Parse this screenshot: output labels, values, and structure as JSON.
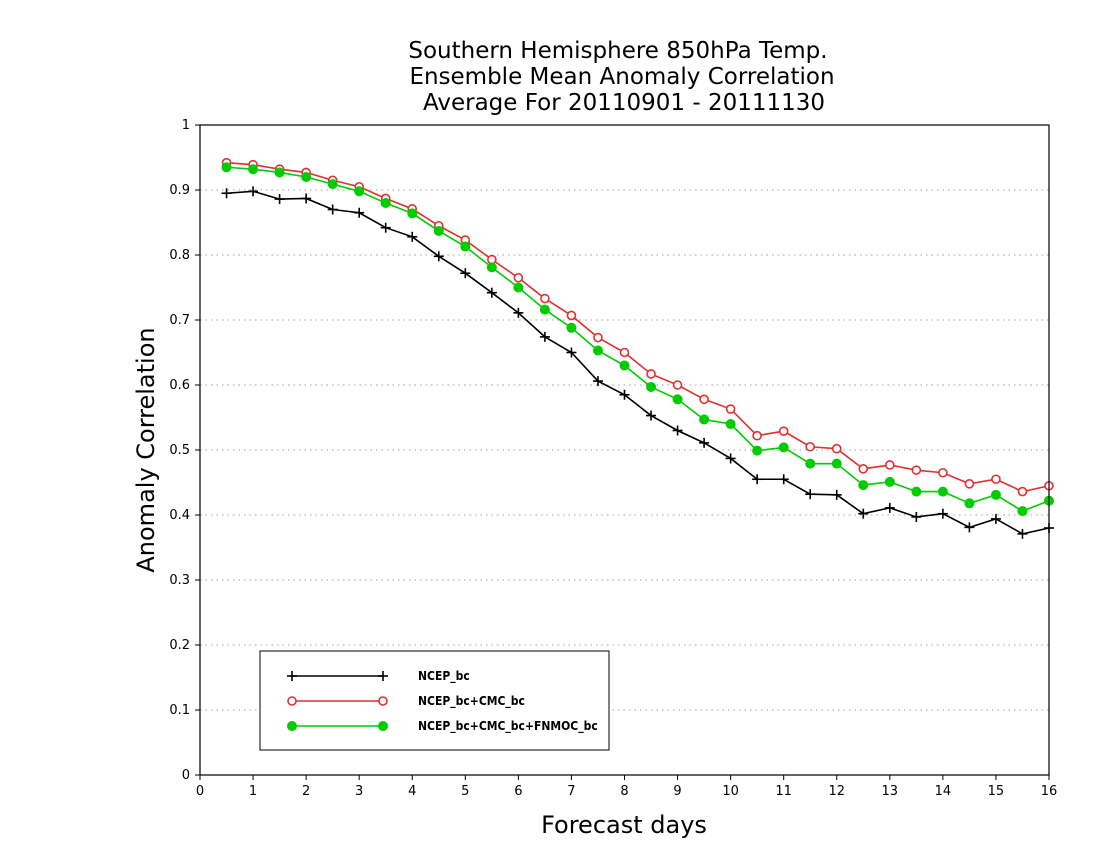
{
  "chart_data": {
    "type": "line",
    "title_lines": [
      "Southern Hemisphere 850hPa Temp.",
      "Ensemble Mean Anomaly Correlation",
      "Average For 20110901 - 20111130"
    ],
    "xlabel": "Forecast days",
    "ylabel": "Anomaly Correlation",
    "xlim": [
      0,
      16
    ],
    "ylim": [
      0,
      1
    ],
    "xticks": [
      "0",
      "1",
      "2",
      "3",
      "4",
      "5",
      "6",
      "7",
      "8",
      "9",
      "10",
      "11",
      "12",
      "13",
      "14",
      "15",
      "16"
    ],
    "yticks": [
      "0",
      "0.1",
      "0.2",
      "0.3",
      "0.4",
      "0.5",
      "0.6",
      "0.7",
      "0.8",
      "0.9",
      "1"
    ],
    "grid": "horizontal dotted",
    "legend_position": "bottom-left",
    "x": [
      0.5,
      1,
      1.5,
      2,
      2.5,
      3,
      3.5,
      4,
      4.5,
      5,
      5.5,
      6,
      6.5,
      7,
      7.5,
      8,
      8.5,
      9,
      9.5,
      10,
      10.5,
      11,
      11.5,
      12,
      12.5,
      13,
      13.5,
      14,
      14.5,
      15,
      15.5,
      16
    ],
    "series": [
      {
        "name": "NCEP_bc",
        "color": "#000000",
        "marker": "plus",
        "values": [
          0.895,
          0.898,
          0.886,
          0.887,
          0.87,
          0.865,
          0.842,
          0.828,
          0.798,
          0.772,
          0.742,
          0.711,
          0.674,
          0.65,
          0.606,
          0.585,
          0.553,
          0.53,
          0.511,
          0.487,
          0.455,
          0.455,
          0.432,
          0.431,
          0.402,
          0.411,
          0.397,
          0.402,
          0.381,
          0.394,
          0.371,
          0.38
        ]
      },
      {
        "name": "NCEP_bc+CMC_bc",
        "color": "#e03030",
        "marker": "open-circle",
        "values": [
          0.942,
          0.939,
          0.932,
          0.927,
          0.915,
          0.905,
          0.887,
          0.871,
          0.845,
          0.823,
          0.793,
          0.765,
          0.733,
          0.707,
          0.673,
          0.65,
          0.617,
          0.6,
          0.578,
          0.563,
          0.522,
          0.529,
          0.505,
          0.502,
          0.471,
          0.477,
          0.469,
          0.465,
          0.448,
          0.455,
          0.436,
          0.445
        ]
      },
      {
        "name": "NCEP_bc+CMC_bc+FNMOC_bc",
        "color": "#00cc00",
        "marker": "filled-circle",
        "values": [
          0.935,
          0.932,
          0.927,
          0.92,
          0.909,
          0.898,
          0.88,
          0.864,
          0.837,
          0.813,
          0.781,
          0.75,
          0.716,
          0.688,
          0.653,
          0.63,
          0.597,
          0.578,
          0.547,
          0.54,
          0.499,
          0.504,
          0.479,
          0.479,
          0.446,
          0.451,
          0.436,
          0.436,
          0.418,
          0.431,
          0.406,
          0.422
        ]
      }
    ]
  }
}
